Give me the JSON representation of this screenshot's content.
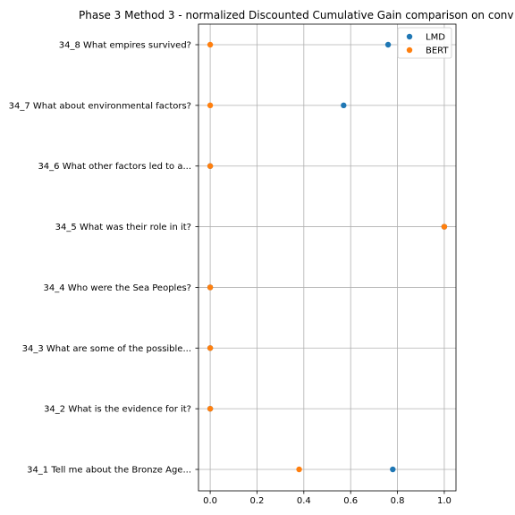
{
  "chart_data": {
    "type": "scatter",
    "title": "Phase 3 Method 3 - normalized Discounted Cumulative Gain comparison on conv",
    "xlabel": "",
    "ylabel": "",
    "xlim": [
      -0.05,
      1.05
    ],
    "xticks": [
      0.0,
      0.2,
      0.4,
      0.6,
      0.8,
      1.0
    ],
    "xtick_labels": [
      "0.0",
      "0.2",
      "0.4",
      "0.6",
      "0.8",
      "1.0"
    ],
    "categories": [
      "34_1 Tell me about the Bronze Age...",
      "34_2 What is the evidence for it?",
      "34_3 What are some of the possible...",
      "34_4 Who were the Sea Peoples?",
      "34_5 What was their role in it?",
      "34_6 What other factors led to a...",
      "34_7 What about environmental factors?",
      "34_8 What empires survived?"
    ],
    "series": [
      {
        "name": "LMD",
        "color": "#1f77b4",
        "values": [
          0.78,
          0.0,
          0.0,
          0.0,
          1.0,
          0.0,
          0.57,
          0.76
        ]
      },
      {
        "name": "BERT",
        "color": "#ff7f0e",
        "values": [
          0.38,
          0.0,
          0.0,
          0.0,
          1.0,
          0.0,
          0.0,
          0.0
        ]
      }
    ],
    "grid": true,
    "legend_position": "top-right"
  }
}
